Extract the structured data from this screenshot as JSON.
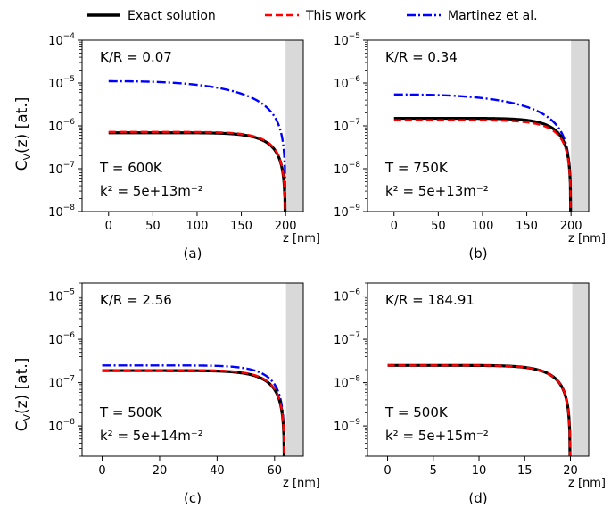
{
  "legend": [
    {
      "label": "Exact solution",
      "color": "#000000",
      "style": "solid"
    },
    {
      "label": "This work",
      "color": "#ff0000",
      "style": "dashed"
    },
    {
      "label": "Martinez et al.",
      "color": "#0000ff",
      "style": "dashdot"
    }
  ],
  "ylabel_top": "C_V(z) [at.]",
  "ylabel_bottom": "C_V(z) [at.]",
  "chart_data": [
    {
      "type": "line",
      "panel_label": "(a)",
      "ratio_label": "K/R = 0.07",
      "temp_label": "T = 600K",
      "k2_label": "k² = 5e+13m⁻²",
      "xlabel": "z [nm]",
      "ylabel": "C_V(z) [at.]",
      "x_ticks": [
        0,
        50,
        100,
        150,
        200
      ],
      "xlim": [
        -30,
        220
      ],
      "yscale": "log",
      "ylim": [
        1e-08,
        0.0001
      ],
      "y_ticks": [
        -8,
        -7,
        -6,
        -5,
        -4
      ],
      "shaded_x_from": 200,
      "L": 200,
      "series": [
        {
          "name": "Exact solution",
          "c0": 6.9e-07,
          "shape": "exact"
        },
        {
          "name": "This work",
          "c0": 7.2e-07,
          "shape": "flat"
        },
        {
          "name": "Martinez et al.",
          "c0": 1.1e-05,
          "shape": "curved"
        }
      ]
    },
    {
      "type": "line",
      "panel_label": "(b)",
      "ratio_label": "K/R = 0.34",
      "temp_label": "T = 750K",
      "k2_label": "k² = 5e+13m⁻²",
      "xlabel": "z [nm]",
      "ylabel": "",
      "x_ticks": [
        0,
        50,
        100,
        150,
        200
      ],
      "xlim": [
        -30,
        220
      ],
      "yscale": "log",
      "ylim": [
        1e-09,
        1e-05
      ],
      "y_ticks": [
        -9,
        -8,
        -7,
        -6,
        -5
      ],
      "shaded_x_from": 200,
      "L": 200,
      "series": [
        {
          "name": "Exact solution",
          "c0": 1.5e-07,
          "shape": "exact"
        },
        {
          "name": "This work",
          "c0": 1.35e-07,
          "shape": "flat"
        },
        {
          "name": "Martinez et al.",
          "c0": 5.4e-07,
          "shape": "curved"
        }
      ]
    },
    {
      "type": "line",
      "panel_label": "(c)",
      "ratio_label": "K/R = 2.56",
      "temp_label": "T = 500K",
      "k2_label": "k² = 5e+14m⁻²",
      "xlabel": "z [nm]",
      "ylabel": "C_V(z) [at.]",
      "x_ticks": [
        0,
        20,
        40,
        60
      ],
      "xlim": [
        -7,
        70
      ],
      "yscale": "log",
      "ylim": [
        2e-09,
        2e-05
      ],
      "y_ticks": [
        -8,
        -7,
        -6,
        -5
      ],
      "shaded_x_from": 64,
      "L": 63.5,
      "series": [
        {
          "name": "Exact solution",
          "c0": 1.9e-07,
          "shape": "exact"
        },
        {
          "name": "This work",
          "c0": 1.95e-07,
          "shape": "exact"
        },
        {
          "name": "Martinez et al.",
          "c0": 2.5e-07,
          "shape": "exact"
        }
      ]
    },
    {
      "type": "line",
      "panel_label": "(d)",
      "ratio_label": "K/R = 184.91",
      "temp_label": "T = 500K",
      "k2_label": "k² = 5e+15m⁻²",
      "xlabel": "z [nm]",
      "ylabel": "",
      "x_ticks": [
        0,
        5,
        10,
        15,
        20
      ],
      "xlim": [
        -2.2,
        22
      ],
      "yscale": "log",
      "ylim": [
        2e-10,
        2e-06
      ],
      "y_ticks": [
        -9,
        -8,
        -7,
        -6
      ],
      "shaded_x_from": 20.2,
      "L": 20,
      "series": [
        {
          "name": "Exact solution",
          "c0": 2.5e-08,
          "shape": "exact"
        },
        {
          "name": "This work",
          "c0": 2.5e-08,
          "shape": "exact"
        },
        {
          "name": "Martinez et al.",
          "c0": 2.5e-08,
          "shape": "exact"
        }
      ]
    }
  ]
}
